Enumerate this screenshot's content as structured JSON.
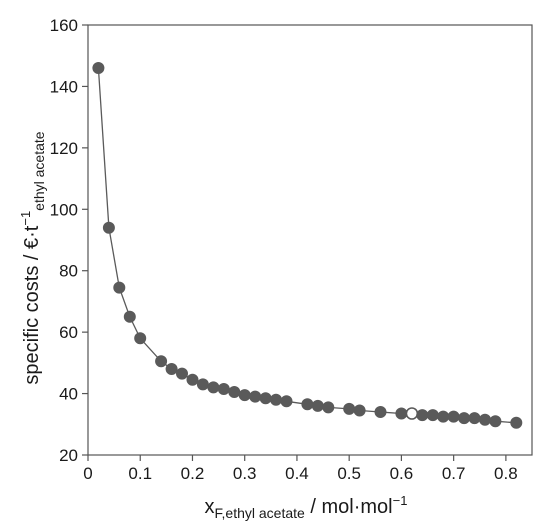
{
  "chart_data": {
    "type": "scatter",
    "title": "",
    "xlabel": {
      "main": "x",
      "sub": "F,ethyl acetate",
      "unit": " / mol·mol",
      "unit_sup": "−1"
    },
    "ylabel": {
      "main": "specific costs / €·t",
      "sup": "−1",
      "sub": "ethyl acetate"
    },
    "xlim": [
      0,
      0.85
    ],
    "ylim": [
      20,
      160
    ],
    "xticks": [
      0,
      0.1,
      0.2,
      0.3,
      0.4,
      0.5,
      0.6,
      0.7,
      0.8
    ],
    "xtick_labels": [
      "0",
      "0.1",
      "0.2",
      "0.3",
      "0.4",
      "0.5",
      "0.6",
      "0.7",
      "0.8"
    ],
    "yticks": [
      20,
      40,
      60,
      80,
      100,
      120,
      140,
      160
    ],
    "ytick_labels": [
      "20",
      "40",
      "60",
      "80",
      "100",
      "120",
      "140",
      "160"
    ],
    "grid": false,
    "colors": {
      "marker": "#5a5a5a",
      "highlight_fill": "#ffffff",
      "line": "#5a5a5a",
      "frame": "#555555"
    },
    "series": [
      {
        "x": [
          0.02,
          0.04,
          0.06,
          0.08,
          0.1,
          0.14,
          0.16,
          0.18,
          0.2,
          0.22,
          0.24,
          0.26,
          0.28,
          0.3,
          0.32,
          0.34,
          0.36,
          0.38,
          0.42,
          0.44,
          0.46,
          0.5,
          0.52,
          0.56,
          0.6,
          0.62,
          0.64,
          0.66,
          0.68,
          0.7,
          0.72,
          0.74,
          0.76,
          0.78,
          0.82
        ],
        "y": [
          146,
          94,
          74.5,
          65,
          58,
          50.5,
          48,
          46.5,
          44.5,
          43,
          42,
          41.5,
          40.5,
          39.5,
          39,
          38.5,
          38,
          37.5,
          36.5,
          36,
          35.5,
          35,
          34.5,
          34,
          33.5,
          33.5,
          33,
          33,
          32.5,
          32.5,
          32,
          32,
          31.5,
          31,
          30.5
        ],
        "highlight_index": 25
      }
    ]
  }
}
